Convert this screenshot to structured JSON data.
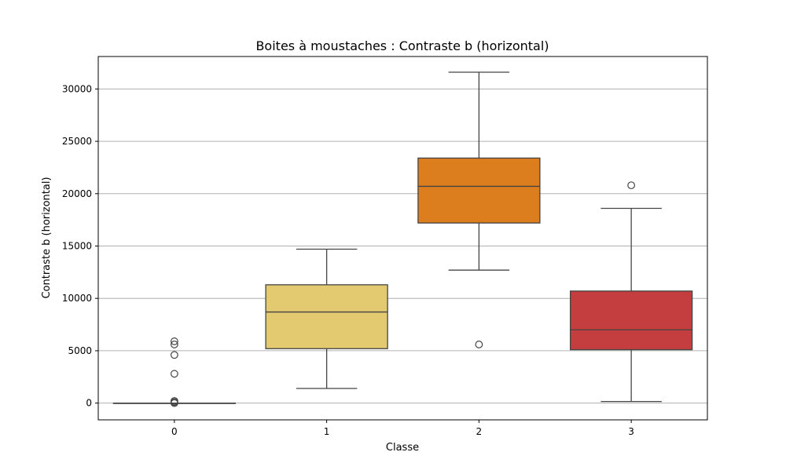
{
  "chart_data": {
    "type": "boxplot",
    "title": "Boites à moustaches : Contraste b (horizontal)",
    "xlabel": "Classe",
    "ylabel": "Contraste b (horizontal)",
    "ylim": [
      -1600,
      33100
    ],
    "yticks": [
      0,
      5000,
      10000,
      15000,
      20000,
      25000,
      30000
    ],
    "ytick_labels": [
      "0",
      "5000",
      "10000",
      "15000",
      "20000",
      "25000",
      "30000"
    ],
    "grid": "horizontal",
    "categories": [
      "0",
      "1",
      "2",
      "3"
    ],
    "boxes": [
      {
        "category": "0",
        "color": "#1f2a5c",
        "whisker_low": 0,
        "q1": 0,
        "median": 0,
        "q3": 0,
        "whisker_high": 0,
        "outliers": [
          5900,
          5600,
          4600,
          2800,
          200,
          100,
          0
        ]
      },
      {
        "category": "1",
        "color": "#e3c96f",
        "whisker_low": 1400,
        "q1": 5200,
        "median": 8700,
        "q3": 11300,
        "whisker_high": 14700,
        "outliers": []
      },
      {
        "category": "2",
        "color": "#dc7e1d",
        "whisker_low": 12700,
        "q1": 17200,
        "median": 20700,
        "q3": 23400,
        "whisker_high": 31600,
        "outliers": [
          5600
        ]
      },
      {
        "category": "3",
        "color": "#c43d3f",
        "whisker_low": 150,
        "q1": 5100,
        "median": 7000,
        "q3": 10700,
        "whisker_high": 18600,
        "outliers": [
          20800
        ]
      }
    ]
  }
}
